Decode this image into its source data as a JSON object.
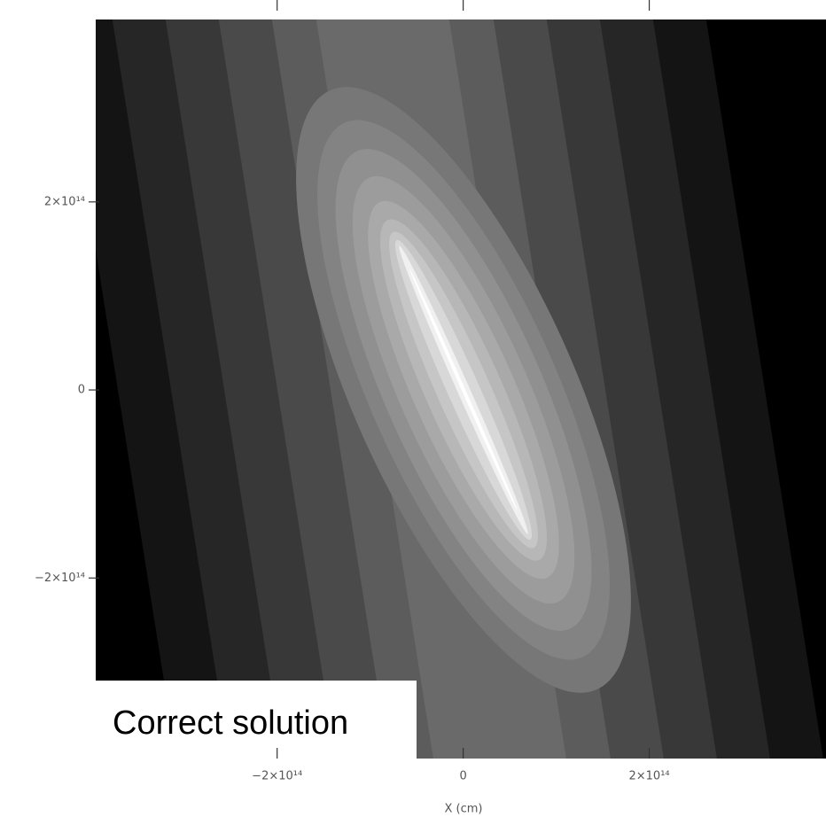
{
  "chart_data": {
    "type": "contour",
    "xlabel": "X (cm)",
    "annotation": "Correct solution",
    "xlim": [
      -395000000000000.0,
      390000000000000.0
    ],
    "ylim": [
      -392000000000000.0,
      394000000000000.0
    ],
    "xticks": [
      {
        "value": -200000000000000.0,
        "label": "−2×10¹⁴"
      },
      0,
      {
        "value": 200000000000000.0,
        "label": "2×10¹⁴"
      }
    ],
    "yticks": [
      {
        "value": -200000000000000.0,
        "label": "−2×10¹⁴"
      },
      0,
      {
        "value": 200000000000000.0,
        "label": "2×10¹⁴"
      }
    ]
  }
}
